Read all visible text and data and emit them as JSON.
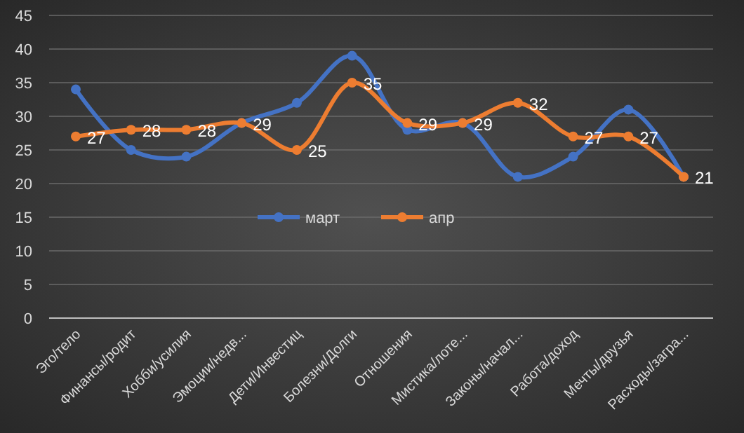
{
  "chart_data": {
    "type": "line",
    "categories": [
      "Эго/тело",
      "Финансы/родит",
      "Хобби/усилия",
      "Эмоции/недв...",
      "Дети/Инвестиц",
      "Болезни/Долги",
      "Отношения",
      "Мистика/лоте...",
      "Законы/начал...",
      "Работа/доход",
      "Мечты/друзья",
      "Расходы/загра..."
    ],
    "series": [
      {
        "name": "март",
        "color": "#4472c4",
        "values": [
          34,
          25,
          24,
          29,
          32,
          39,
          28,
          29,
          21,
          24,
          31,
          21
        ]
      },
      {
        "name": "апр",
        "color": "#ed7d31",
        "values": [
          27,
          28,
          28,
          29,
          25,
          35,
          29,
          29,
          32,
          27,
          27,
          21
        ],
        "value_labels": [
          "27",
          "28",
          "28",
          "29",
          "25",
          "35",
          "29",
          "29",
          "32",
          "27",
          "27",
          "21"
        ]
      }
    ],
    "ylim": [
      0,
      45
    ],
    "yticks": [
      0,
      5,
      10,
      15,
      20,
      25,
      30,
      35,
      40,
      45
    ],
    "grid": "y",
    "legend": "center",
    "marker": "circle",
    "line_style": "solid"
  }
}
